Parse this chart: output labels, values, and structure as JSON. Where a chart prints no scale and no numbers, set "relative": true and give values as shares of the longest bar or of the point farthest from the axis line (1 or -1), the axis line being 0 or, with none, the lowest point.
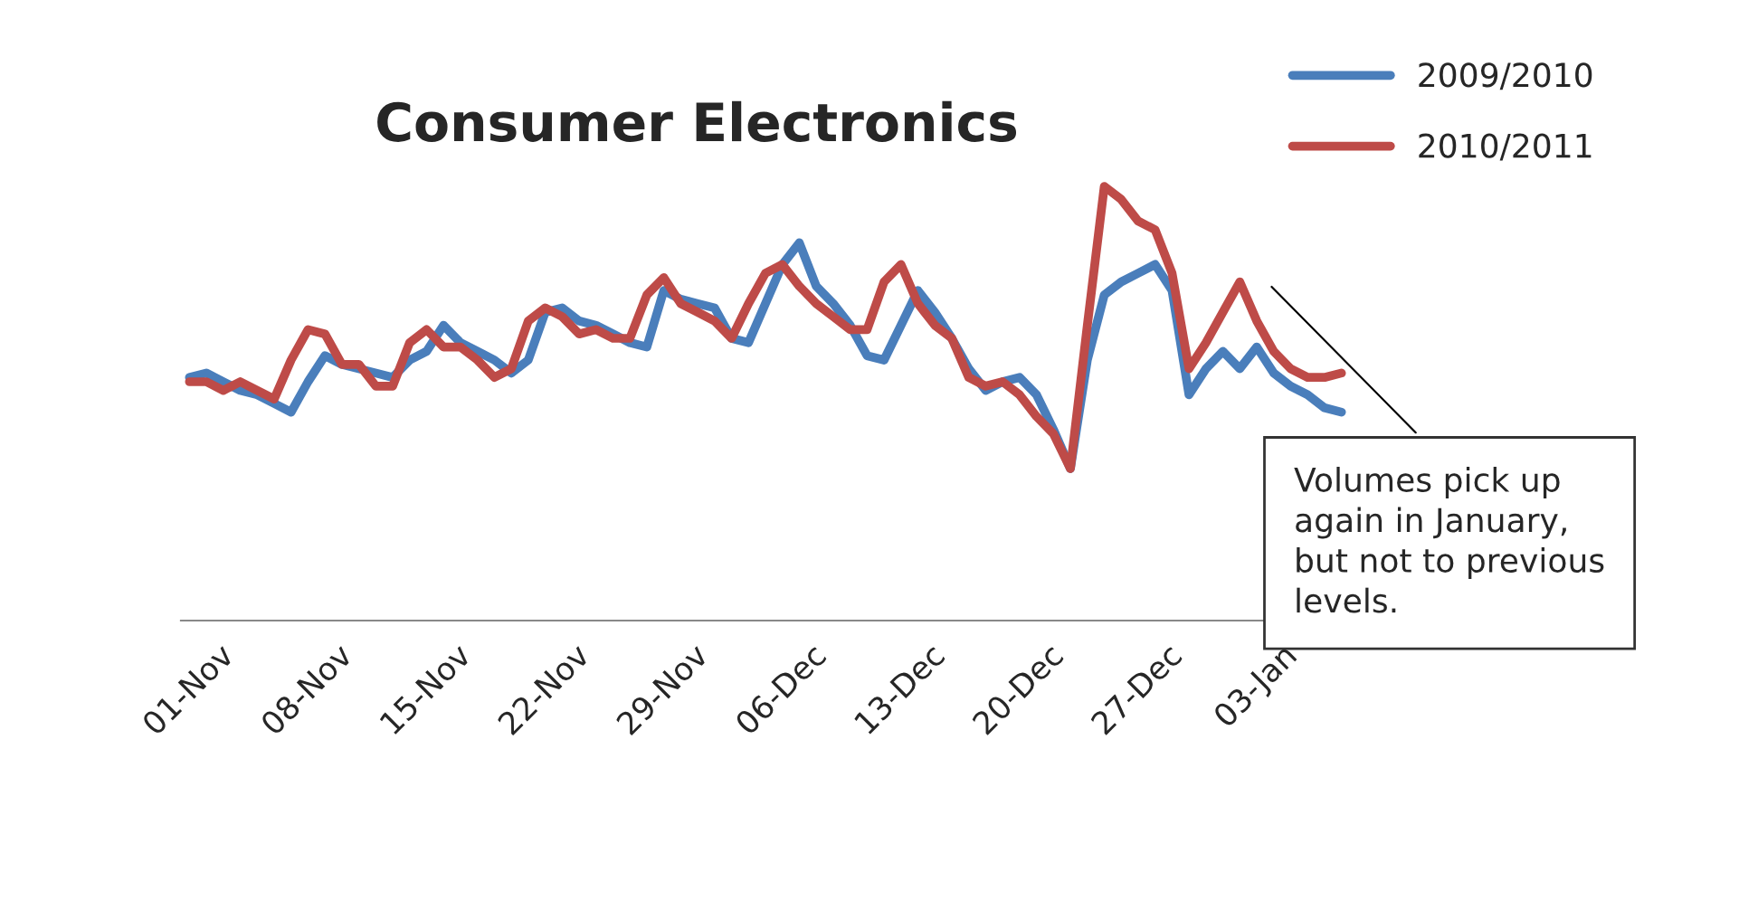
{
  "chart_data": {
    "type": "line",
    "title": "Consumer Electronics",
    "relative": true,
    "legend": "top right",
    "categories": [
      "01-Nov",
      null,
      null,
      null,
      null,
      null,
      null,
      "08-Nov",
      null,
      null,
      null,
      null,
      null,
      null,
      "15-Nov",
      null,
      null,
      null,
      null,
      null,
      null,
      "22-Nov",
      null,
      null,
      null,
      null,
      null,
      null,
      "29-Nov",
      null,
      null,
      null,
      null,
      null,
      null,
      "06-Dec",
      null,
      null,
      null,
      null,
      null,
      null,
      "13-Dec",
      null,
      null,
      null,
      null,
      null,
      null,
      "20-Dec",
      null,
      null,
      null,
      null,
      null,
      null,
      "27-Dec",
      null,
      null,
      null,
      null,
      null,
      null,
      "03-Jan",
      null,
      null,
      null,
      null,
      null
    ],
    "series": [
      {
        "name": "2009/2010",
        "color": "#4a7ebb",
        "values": [
          0.56,
          0.57,
          0.55,
          0.53,
          0.52,
          0.5,
          0.48,
          0.55,
          0.61,
          0.59,
          0.58,
          0.57,
          0.56,
          0.6,
          0.62,
          0.68,
          0.64,
          0.62,
          0.6,
          0.57,
          0.6,
          0.71,
          0.72,
          0.69,
          0.68,
          0.66,
          0.64,
          0.63,
          0.76,
          0.74,
          0.73,
          0.72,
          0.65,
          0.64,
          0.73,
          0.82,
          0.87,
          0.77,
          0.73,
          0.68,
          0.61,
          0.6,
          0.68,
          0.76,
          0.71,
          0.65,
          0.58,
          0.53,
          0.55,
          0.56,
          0.52,
          0.44,
          0.35,
          0.6,
          0.75,
          0.78,
          0.8,
          0.82,
          0.76,
          0.52,
          0.58,
          0.62,
          0.58,
          0.63,
          0.57,
          0.54,
          0.52,
          0.49,
          0.48
        ]
      },
      {
        "name": "2010/2011",
        "color": "#be4b48",
        "values": [
          0.55,
          0.55,
          0.53,
          0.55,
          0.53,
          0.51,
          0.6,
          0.67,
          0.66,
          0.59,
          0.59,
          0.54,
          0.54,
          0.64,
          0.67,
          0.63,
          0.63,
          0.6,
          0.56,
          0.58,
          0.69,
          0.72,
          0.7,
          0.66,
          0.67,
          0.65,
          0.65,
          0.75,
          0.79,
          0.73,
          0.71,
          0.69,
          0.65,
          0.73,
          0.8,
          0.82,
          0.77,
          0.73,
          0.7,
          0.67,
          0.67,
          0.78,
          0.82,
          0.73,
          0.68,
          0.65,
          0.56,
          0.54,
          0.55,
          0.52,
          0.47,
          0.43,
          0.35,
          0.68,
          1,
          0.97,
          0.92,
          0.9,
          0.8,
          0.58,
          0.64,
          0.71,
          0.78,
          0.69,
          0.62,
          0.58,
          0.56,
          0.56,
          0.57
        ]
      }
    ],
    "annotations": [
      "Volumes pick up\nagain in January,\nbut not to previous\nlevels."
    ]
  }
}
